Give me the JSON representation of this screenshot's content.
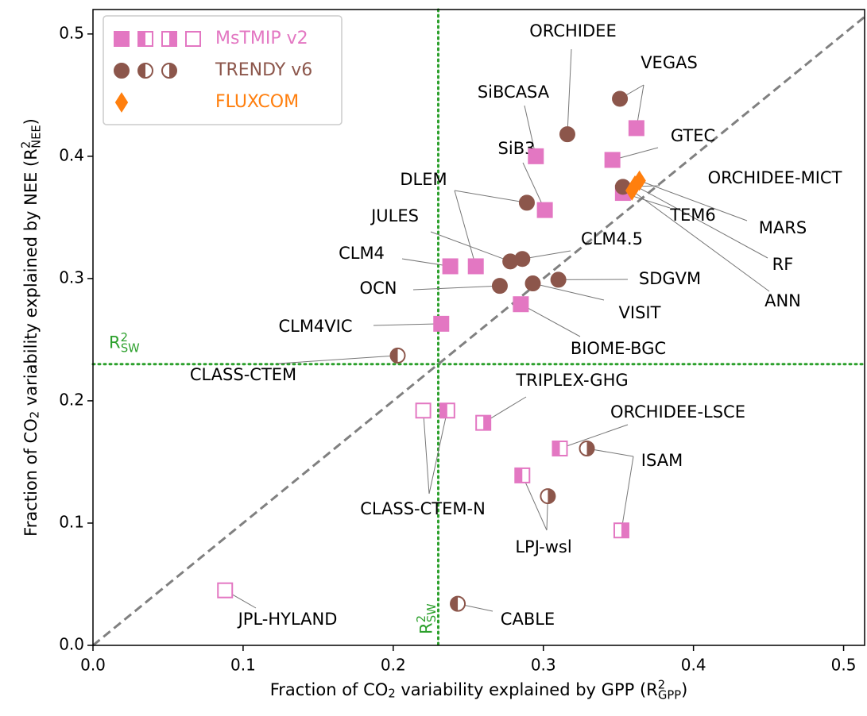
{
  "chart_data": {
    "type": "scatter",
    "xlabel": [
      {
        "text": "Fraction of CO"
      },
      {
        "text": "2",
        "shift": "sub"
      },
      {
        "text": " variability explained by GPP ("
      },
      {
        "text": "R"
      },
      {
        "text": "2",
        "shift": "sup"
      },
      {
        "text": "GPP",
        "shift": "sub"
      },
      {
        "text": ")"
      }
    ],
    "ylabel": [
      {
        "text": "Fraction of CO"
      },
      {
        "text": "2",
        "shift": "sub"
      },
      {
        "text": " variability explained by NEE ("
      },
      {
        "text": "R"
      },
      {
        "text": "2",
        "shift": "sup"
      },
      {
        "text": "NEE",
        "shift": "sub"
      },
      {
        "text": ")"
      }
    ],
    "xlim": [
      0,
      0.514
    ],
    "ylim": [
      0,
      0.52
    ],
    "xticks": [
      {
        "value": 0,
        "label": "0.0"
      },
      0.1,
      0.2,
      0.3,
      0.4,
      0.5
    ],
    "yticks": [
      {
        "value": 0,
        "label": "0.0"
      },
      0.1,
      0.2,
      0.3,
      0.4,
      0.5
    ],
    "one_to_one_line": {
      "color": "#808080",
      "dash": true
    },
    "threshold": {
      "value": 0.23,
      "color": "#2ca02c"
    },
    "hline_label": [
      {
        "text": "R"
      },
      {
        "text": "2",
        "shift": "sup"
      },
      {
        "text": "SW",
        "shift": "sub"
      }
    ],
    "vline_label": [
      {
        "text": "R"
      },
      {
        "text": "2",
        "shift": "sup"
      },
      {
        "text": "SW",
        "shift": "sub"
      }
    ],
    "legend": "upper left",
    "series": [
      {
        "name": "MsTMIP v2",
        "marker": "square",
        "color": "#e377c2",
        "legend_fills": [
          "full",
          "left",
          "right",
          "none"
        ],
        "names": [
          "VEGAS",
          "GTEC",
          "SiBCASA",
          "SiB3",
          "TEM6",
          "CLM4",
          "DLEM",
          "BIOME-BGC",
          "CLM4VIC",
          "CLASS-CTEM-N",
          "CLASS-CTEM-N",
          "TRIPLEX-GHG",
          "ORCHIDEE-LSCE",
          "LPJ-wsl",
          "ISAM",
          "JPL-HYLAND"
        ],
        "fills": [
          "full",
          "full",
          "full",
          "full",
          "full",
          "full",
          "full",
          "full",
          "full",
          "none",
          "left",
          "right",
          "left",
          "left",
          "right",
          "none"
        ],
        "x": [
          0.362,
          0.346,
          0.295,
          0.301,
          0.353,
          0.238,
          0.255,
          0.285,
          0.232,
          0.22,
          0.236,
          0.26,
          0.311,
          0.286,
          0.352,
          0.088
        ],
        "y": [
          0.423,
          0.397,
          0.4,
          0.356,
          0.37,
          0.31,
          0.31,
          0.279,
          0.263,
          0.192,
          0.192,
          0.182,
          0.161,
          0.139,
          0.094,
          0.045
        ]
      },
      {
        "name": "TRENDY v6",
        "marker": "circle",
        "color": "#8c564b",
        "legend_fills": [
          "full",
          "left",
          "right"
        ],
        "names": [
          "VEGAS",
          "ORCHIDEE",
          "DLEM",
          "ORCHIDEE-MICT",
          "JULES",
          "CLM4.5",
          "OCN",
          "VISIT",
          "SDGVM",
          "CLASS-CTEM",
          "ISAM",
          "LPJ-wsl",
          "CABLE"
        ],
        "fills": [
          "full",
          "full",
          "full",
          "full",
          "full",
          "full",
          "full",
          "full",
          "full",
          "left",
          "right",
          "right",
          "left"
        ],
        "x": [
          0.351,
          0.316,
          0.289,
          0.353,
          0.278,
          0.286,
          0.271,
          0.293,
          0.31,
          0.203,
          0.329,
          0.303,
          0.243
        ],
        "y": [
          0.447,
          0.418,
          0.362,
          0.375,
          0.314,
          0.316,
          0.294,
          0.296,
          0.299,
          0.237,
          0.161,
          0.122,
          0.034
        ]
      },
      {
        "name": "FLUXCOM",
        "marker": "diamond",
        "color": "#ff7f0e",
        "legend_fills": [
          "full"
        ],
        "names": [
          "MARS",
          "RF",
          "ANN"
        ],
        "fills": [
          "full",
          "full",
          "full"
        ],
        "x": [
          0.364,
          0.361,
          0.359
        ],
        "y": [
          0.38,
          0.376,
          0.372
        ]
      }
    ]
  }
}
